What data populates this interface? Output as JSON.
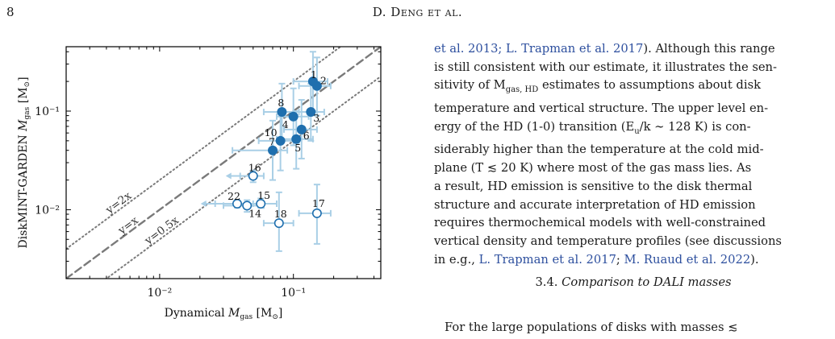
{
  "header": {
    "page_number": "8",
    "running_head": "D. Deng et al."
  },
  "chart_data": {
    "type": "scatter",
    "title": "",
    "xlabel": "Dynamical M_gas [M_sun]",
    "ylabel": "DiskMINT-GARDEN M_gas [M_sun]",
    "xlabel_parts": {
      "pre": "Dynamical ",
      "m": "M",
      "sub": "gas",
      "unit": " [M",
      "sun": "⊙",
      "close": "]"
    },
    "ylabel_parts": {
      "pre": "DiskMINT-GARDEN ",
      "m": "M",
      "sub": "gas",
      "unit": " [M",
      "sun": "⊙",
      "close": "]"
    },
    "xscale": "log",
    "yscale": "log",
    "xlim": [
      0.002,
      0.45
    ],
    "ylim": [
      0.002,
      0.45
    ],
    "xticks": [
      {
        "v": 0.01,
        "label": "10⁻²"
      },
      {
        "v": 0.1,
        "label": "10⁻¹"
      }
    ],
    "yticks": [
      {
        "v": 0.01,
        "label": "10⁻²"
      },
      {
        "v": 0.1,
        "label": "10⁻¹"
      }
    ],
    "grid": false,
    "reference_lines": [
      {
        "ratio": 2,
        "label": "y=2x",
        "style": "dotted"
      },
      {
        "ratio": 1,
        "label": "y=x",
        "style": "dashed"
      },
      {
        "ratio": 0.5,
        "label": "y=0.5x",
        "style": "dotted"
      }
    ],
    "marker_color": "#1f6fae",
    "errorbar_color": "#a9cfe6",
    "line_color": "#7a7a7a",
    "points": [
      {
        "id": "1",
        "x": 0.14,
        "y": 0.2,
        "xlo": 0.1,
        "xhi": 0.18,
        "ylo": 0.1,
        "yhi": 0.4,
        "filled": true
      },
      {
        "id": "2",
        "x": 0.15,
        "y": 0.18,
        "xlo": 0.11,
        "xhi": 0.19,
        "ylo": 0.09,
        "yhi": 0.35,
        "filled": true
      },
      {
        "id": "3",
        "x": 0.135,
        "y": 0.098,
        "xlo": 0.1,
        "xhi": 0.17,
        "ylo": 0.05,
        "yhi": 0.19,
        "filled": true
      },
      {
        "id": "4",
        "x": 0.1,
        "y": 0.088,
        "xlo": 0.075,
        "xhi": 0.13,
        "ylo": 0.045,
        "yhi": 0.17,
        "filled": true
      },
      {
        "id": "5",
        "x": 0.105,
        "y": 0.052,
        "xlo": 0.075,
        "xhi": 0.14,
        "ylo": 0.026,
        "yhi": 0.1,
        "filled": true
      },
      {
        "id": "6",
        "x": 0.115,
        "y": 0.065,
        "xlo": 0.085,
        "xhi": 0.15,
        "ylo": 0.033,
        "yhi": 0.13,
        "filled": true
      },
      {
        "id": "7",
        "x": 0.07,
        "y": 0.04,
        "xlo": 0.035,
        "xhi": 0.09,
        "ylo": 0.02,
        "yhi": 0.08,
        "filled": true
      },
      {
        "id": "8",
        "x": 0.082,
        "y": 0.098,
        "xlo": 0.06,
        "xhi": 0.11,
        "ylo": 0.05,
        "yhi": 0.19,
        "filled": true
      },
      {
        "id": "10",
        "x": 0.08,
        "y": 0.05,
        "xlo": 0.055,
        "xhi": 0.11,
        "ylo": 0.025,
        "yhi": 0.1,
        "filled": true
      },
      {
        "id": "14",
        "x": 0.045,
        "y": 0.011,
        "xlo": 0.03,
        "xhi": 0.06,
        "ylo": 0.0095,
        "yhi": 0.0125,
        "filled": false
      },
      {
        "id": "15",
        "x": 0.057,
        "y": 0.0115,
        "xlo": 0.045,
        "xhi": 0.075,
        "ylo": 0.0105,
        "yhi": 0.013,
        "filled": false
      },
      {
        "id": "16",
        "x": 0.05,
        "y": 0.022,
        "xlo": 0.04,
        "xhi": 0.06,
        "ylo": 0.019,
        "yhi": 0.025,
        "filled": false,
        "upper_limit_x": true
      },
      {
        "id": "17",
        "x": 0.15,
        "y": 0.0092,
        "xlo": 0.11,
        "xhi": 0.19,
        "ylo": 0.0045,
        "yhi": 0.018,
        "filled": false
      },
      {
        "id": "18",
        "x": 0.078,
        "y": 0.0073,
        "xlo": 0.06,
        "xhi": 0.1,
        "ylo": 0.0038,
        "yhi": 0.015,
        "filled": false
      },
      {
        "id": "22",
        "x": 0.038,
        "y": 0.0115,
        "xlo": 0.026,
        "xhi": 0.05,
        "ylo": 0.0105,
        "yhi": 0.0125,
        "filled": false,
        "upper_limit_x": true
      }
    ],
    "point_labels": [
      {
        "id": "1",
        "dx": -3,
        "dy": -4
      },
      {
        "id": "2",
        "dx": 4,
        "dy": -2
      },
      {
        "id": "3",
        "dx": 3,
        "dy": 12
      },
      {
        "id": "4",
        "dx": -14,
        "dy": 14
      },
      {
        "id": "5",
        "dx": -2,
        "dy": 15
      },
      {
        "id": "6",
        "dx": 2,
        "dy": 12
      },
      {
        "id": "7",
        "dx": -5,
        "dy": -6
      },
      {
        "id": "8",
        "dx": -5,
        "dy": -7
      },
      {
        "id": "10",
        "dx": -20,
        "dy": -6
      },
      {
        "id": "14",
        "dx": 2,
        "dy": 14
      },
      {
        "id": "15",
        "dx": -4,
        "dy": -6
      },
      {
        "id": "16",
        "dx": -6,
        "dy": -6
      },
      {
        "id": "17",
        "dx": -6,
        "dy": -8
      },
      {
        "id": "18",
        "dx": -6,
        "dy": -7
      },
      {
        "id": "22",
        "dx": -12,
        "dy": -5
      }
    ]
  },
  "body": {
    "lines": [
      [
        {
          "t": "et al. 2013; L. Trapman et al. 2017",
          "cite": true
        },
        {
          "t": "). Although this range"
        }
      ],
      [
        {
          "t": "is still consistent with our estimate, it illustrates the sen-"
        }
      ],
      [
        {
          "t": "sitivity of M"
        },
        {
          "t": "gas, HD",
          "sub": true
        },
        {
          "t": " estimates to assumptions about disk"
        }
      ],
      [
        {
          "t": "temperature and vertical structure. The upper level en-"
        }
      ],
      [
        {
          "t": "ergy of the HD (1-0) transition (E"
        },
        {
          "t": "u",
          "sub": true
        },
        {
          "t": "/k ∼ 128 K) is con-"
        }
      ],
      [
        {
          "t": "siderably higher than the temperature at the cold mid-"
        }
      ],
      [
        {
          "t": "plane (T ≲ 20 K) where most of the gas mass lies. As"
        }
      ],
      [
        {
          "t": "a result, HD emission is sensitive to the disk thermal"
        }
      ],
      [
        {
          "t": "structure and accurate interpretation of HD emission"
        }
      ],
      [
        {
          "t": "requires thermochemical models with well-constrained"
        }
      ],
      [
        {
          "t": "vertical density and temperature profiles (see discussions"
        }
      ],
      [
        {
          "t": "in e.g., "
        },
        {
          "t": "L. Trapman et al. 2017",
          "cite": true
        },
        {
          "t": "; "
        },
        {
          "t": "M. Ruaud et al. 2022",
          "cite": true
        },
        {
          "t": ")."
        }
      ]
    ]
  },
  "section": {
    "number": "3.4.",
    "title": "Comparison to DALI masses"
  },
  "next_paragraph": "For the large populations of disks with masses ≲"
}
